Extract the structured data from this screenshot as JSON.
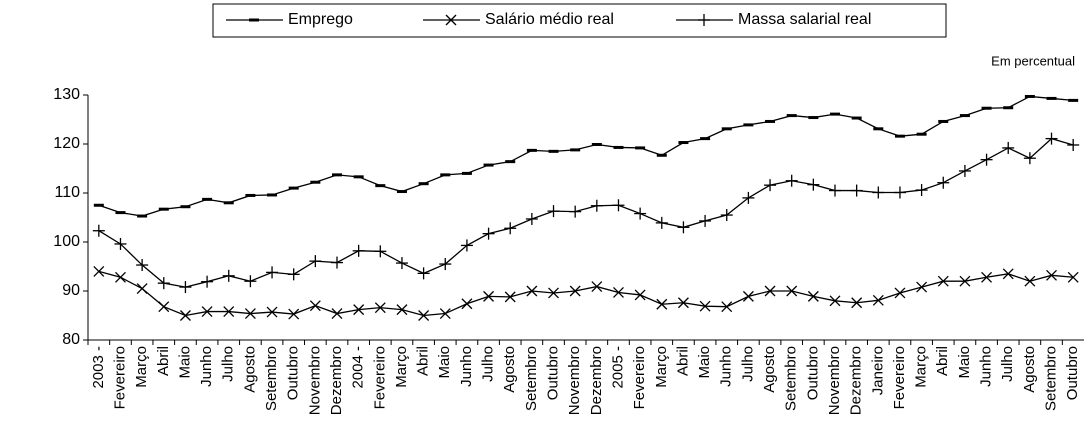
{
  "chart_data": {
    "type": "line",
    "annotation": "Em   percentual",
    "categories": [
      "2003 -",
      "Fevereiro",
      "Março",
      "Abril",
      "Maio",
      "Junho",
      "Julho",
      "Agosto",
      "Setembro",
      "Outubro",
      "Novembro",
      "Dezembro",
      "2004 -",
      "Fevereiro",
      "Março",
      "Abril",
      "Maio",
      "Junho",
      "Julho",
      "Agosto",
      "Setembro",
      "Outubro",
      "Novembro",
      "Dezembro",
      "2005 -",
      "Fevereiro",
      "Março",
      "Abril",
      "Maio",
      "Junho",
      "Julho",
      "Agosto",
      "Setembro",
      "Outubro",
      "Novembro",
      "Dezembro",
      "Janeiro",
      "Fevereiro",
      "Março",
      "Abril",
      "Maio",
      "Junho",
      "Julho",
      "Agosto",
      "Setembro",
      "Outubro"
    ],
    "series": [
      {
        "name": "Emprego",
        "color": "#000000",
        "marker": "dash",
        "values": [
          107.5,
          106,
          105.3,
          106.7,
          107.2,
          108.7,
          108,
          109.5,
          109.6,
          111,
          112.2,
          113.7,
          113.3,
          111.5,
          110.3,
          111.9,
          113.7,
          114,
          115.7,
          116.4,
          118.7,
          118.5,
          118.8,
          119.9,
          119.3,
          119.2,
          117.7,
          120.3,
          121.1,
          123.1,
          123.9,
          124.6,
          125.8,
          125.4,
          126.1,
          125.3,
          123.1,
          121.6,
          122,
          124.6,
          125.8,
          127.3,
          127.4,
          129.7,
          129.3,
          128.9
        ]
      },
      {
        "name": "Salário médio real",
        "color": "#000000",
        "marker": "x",
        "values": [
          94,
          92.8,
          90.5,
          86.8,
          85,
          85.8,
          85.8,
          85.4,
          85.7,
          85.3,
          87,
          85.4,
          86.2,
          86.6,
          86.2,
          85,
          85.4,
          87.4,
          88.9,
          88.8,
          90,
          89.6,
          90,
          90.9,
          89.7,
          89.2,
          87.3,
          87.6,
          86.9,
          86.8,
          88.9,
          90,
          90,
          88.9,
          88,
          87.6,
          88.1,
          89.6,
          90.8,
          92,
          92,
          92.8,
          93.5,
          92,
          93.2,
          92.8
        ]
      },
      {
        "name": "Massa salarial real",
        "color": "#000000",
        "marker": "plus",
        "values": [
          102.3,
          99.6,
          95.3,
          91.6,
          90.8,
          91.9,
          93.1,
          92,
          93.8,
          93.4,
          96.1,
          95.8,
          98.2,
          98.1,
          95.7,
          93.6,
          95.5,
          99.3,
          101.7,
          102.8,
          104.7,
          106.3,
          106.2,
          107.4,
          107.5,
          105.8,
          103.9,
          103,
          104.3,
          105.5,
          109,
          111.6,
          112.5,
          111.7,
          110.5,
          110.5,
          110.1,
          110.1,
          110.6,
          112.1,
          114.5,
          116.8,
          119.2,
          117.1,
          121.1,
          119.8
        ]
      }
    ],
    "ylim": [
      80,
      130
    ],
    "yticks": [
      80,
      90,
      100,
      110,
      120,
      130
    ],
    "grid": false
  }
}
